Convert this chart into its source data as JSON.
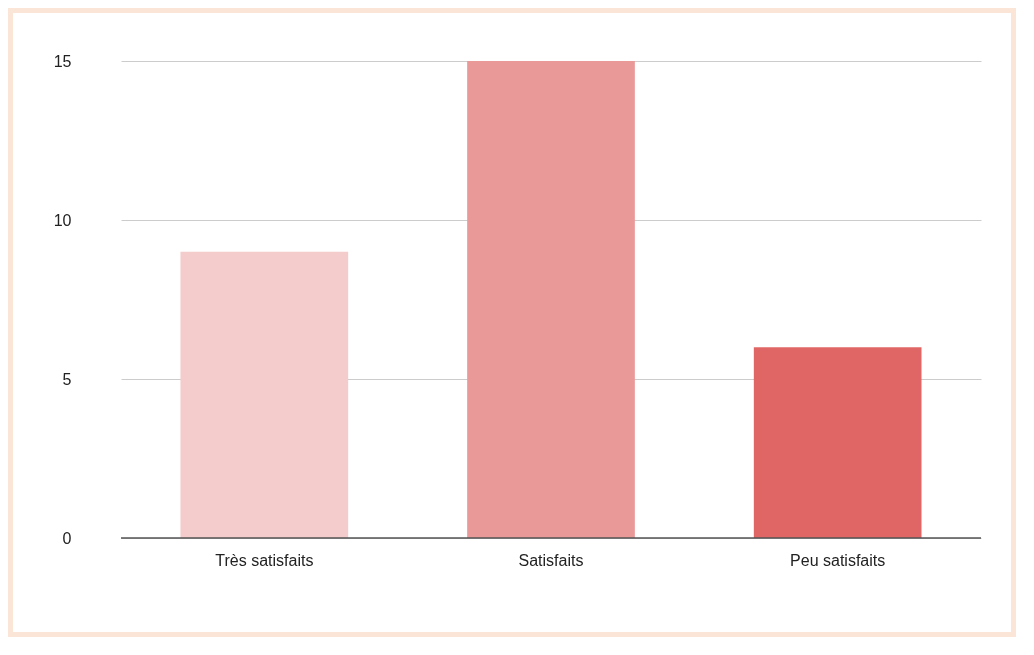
{
  "chart_data": {
    "type": "bar",
    "categories": [
      "Très satisfaits",
      "Satisfaits",
      "Peu satisfaits"
    ],
    "values": [
      9,
      15,
      6
    ],
    "colors": [
      "#f4cccc",
      "#ea9999",
      "#e06666"
    ],
    "ylim": [
      0,
      15
    ],
    "yticks": [
      0,
      5,
      10,
      15
    ],
    "grid": "y",
    "legend": false
  }
}
